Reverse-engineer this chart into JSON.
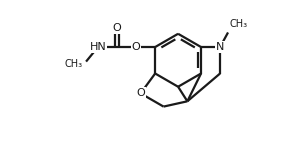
{
  "background_color": "#ffffff",
  "line_color": "#1a1a1a",
  "line_width": 1.6,
  "font_size": 8.0,
  "figsize": [
    2.9,
    1.47
  ],
  "dpi": 100,
  "xlim": [
    0.0,
    10.5
  ],
  "ylim": [
    0.3,
    5.8
  ]
}
